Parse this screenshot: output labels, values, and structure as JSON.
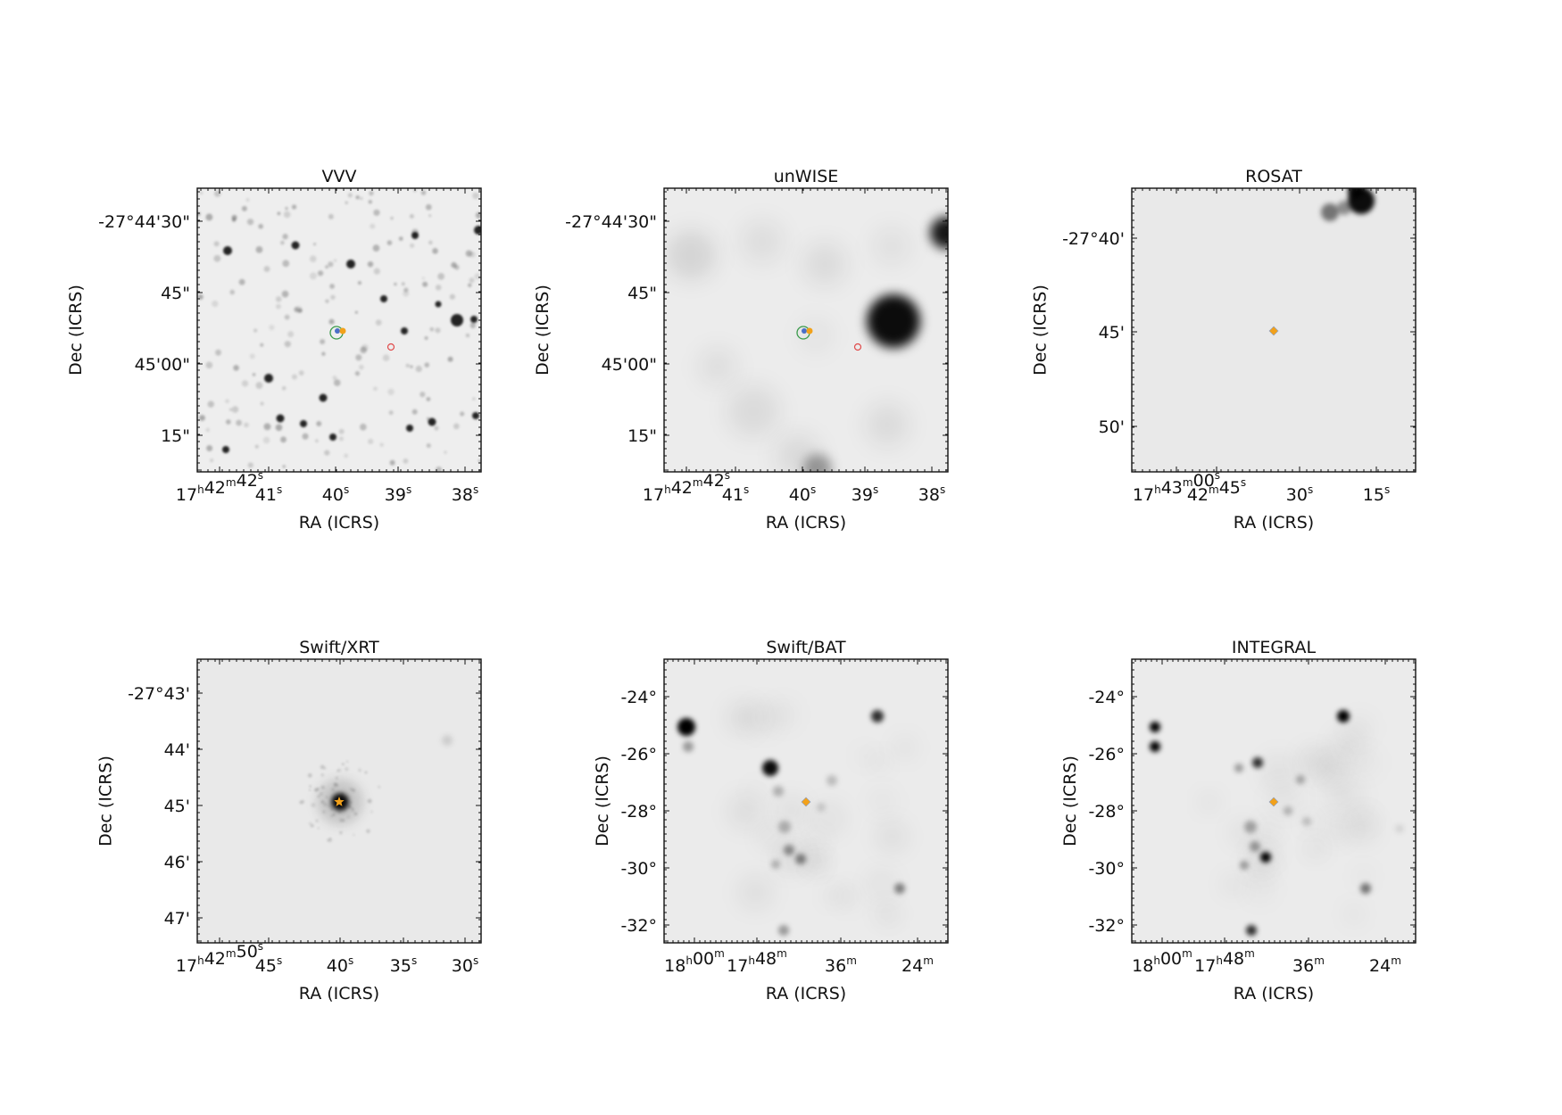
{
  "panels": [
    {
      "id": "vvv",
      "title": "VVV",
      "xlabel": "RA (ICRS)",
      "ylabel": "Dec (ICRS)",
      "image_style": "sharp-starfield",
      "yticks": [
        "-27°44'30\"",
        "45\"",
        "45'00\"",
        "15\""
      ],
      "xticks": [
        {
          "parts": [
            [
              "17",
              "h"
            ],
            [
              "42",
              "m"
            ],
            [
              "42",
              "s"
            ]
          ]
        },
        {
          "parts": [
            [
              "41",
              "s"
            ]
          ]
        },
        {
          "parts": [
            [
              "40",
              "s"
            ]
          ]
        },
        {
          "parts": [
            [
              "39",
              "s"
            ]
          ]
        },
        {
          "parts": [
            [
              "38",
              "s"
            ]
          ]
        }
      ],
      "markers": [
        "green-circle",
        "blue-dot",
        "orange-dot",
        "red-circle"
      ]
    },
    {
      "id": "unwise",
      "title": "unWISE",
      "xlabel": "RA (ICRS)",
      "ylabel": "Dec (ICRS)",
      "image_style": "blurred-infrared",
      "yticks": [
        "-27°44'30\"",
        "45\"",
        "45'00\"",
        "15\""
      ],
      "xticks": [
        {
          "parts": [
            [
              "17",
              "h"
            ],
            [
              "42",
              "m"
            ],
            [
              "42",
              "s"
            ]
          ]
        },
        {
          "parts": [
            [
              "41",
              "s"
            ]
          ]
        },
        {
          "parts": [
            [
              "40",
              "s"
            ]
          ]
        },
        {
          "parts": [
            [
              "39",
              "s"
            ]
          ]
        },
        {
          "parts": [
            [
              "38",
              "s"
            ]
          ]
        }
      ],
      "markers": [
        "green-circle",
        "blue-dot",
        "orange-dot",
        "red-circle"
      ]
    },
    {
      "id": "rosat",
      "title": "ROSAT",
      "xlabel": "RA (ICRS)",
      "ylabel": "Dec (ICRS)",
      "image_style": "flat-xray",
      "yticks": [
        "-27°40'",
        "45'",
        "50'"
      ],
      "xticks": [
        {
          "parts": [
            [
              "17",
              "h"
            ],
            [
              "43",
              "m"
            ],
            [
              "00",
              "s"
            ]
          ]
        },
        {
          "parts": [
            [
              "42",
              "m"
            ],
            [
              "45",
              "s"
            ]
          ]
        },
        {
          "parts": [
            [
              "30",
              "s"
            ]
          ]
        },
        {
          "parts": [
            [
              "15",
              "s"
            ]
          ]
        }
      ],
      "markers": [
        "orange-diamond"
      ]
    },
    {
      "id": "swift-xrt",
      "title": "Swift/XRT",
      "xlabel": "RA (ICRS)",
      "ylabel": "Dec (ICRS)",
      "image_style": "central-point-source",
      "yticks": [
        "-27°43'",
        "44'",
        "45'",
        "46'",
        "47'"
      ],
      "xticks": [
        {
          "parts": [
            [
              "17",
              "h"
            ],
            [
              "42",
              "m"
            ],
            [
              "50",
              "s"
            ]
          ]
        },
        {
          "parts": [
            [
              "45",
              "s"
            ]
          ]
        },
        {
          "parts": [
            [
              "40",
              "s"
            ]
          ]
        },
        {
          "parts": [
            [
              "35",
              "s"
            ]
          ]
        },
        {
          "parts": [
            [
              "30",
              "s"
            ]
          ]
        }
      ],
      "markers": [
        "orange-star"
      ]
    },
    {
      "id": "swift-bat",
      "title": "Swift/BAT",
      "xlabel": "RA (ICRS)",
      "ylabel": "Dec (ICRS)",
      "image_style": "hard-xray-wide",
      "yticks": [
        "-24°",
        "-26°",
        "-28°",
        "-30°",
        "-32°"
      ],
      "xticks": [
        {
          "parts": [
            [
              "18",
              "h"
            ],
            [
              "00",
              "m"
            ]
          ]
        },
        {
          "parts": [
            [
              "17",
              "h"
            ],
            [
              "48",
              "m"
            ]
          ]
        },
        {
          "parts": [
            [
              "36",
              "m"
            ]
          ]
        },
        {
          "parts": [
            [
              "24",
              "m"
            ]
          ]
        }
      ],
      "markers": [
        "orange-diamond"
      ]
    },
    {
      "id": "integral",
      "title": "INTEGRAL",
      "xlabel": "RA (ICRS)",
      "ylabel": "Dec (ICRS)",
      "image_style": "hard-xray-wide",
      "yticks": [
        "-24°",
        "-26°",
        "-28°",
        "-30°",
        "-32°"
      ],
      "xticks": [
        {
          "parts": [
            [
              "18",
              "h"
            ],
            [
              "00",
              "m"
            ]
          ]
        },
        {
          "parts": [
            [
              "17",
              "h"
            ],
            [
              "48",
              "m"
            ]
          ]
        },
        {
          "parts": [
            [
              "36",
              "m"
            ]
          ]
        },
        {
          "parts": [
            [
              "24",
              "m"
            ]
          ]
        }
      ],
      "markers": [
        "orange-diamond"
      ]
    }
  ],
  "colors": {
    "frame": "#111111",
    "background_field": "#e9e9e9",
    "source_dark": "#000000",
    "marker_orange": "#f2a11a",
    "marker_blue": "#4a6fc8",
    "marker_green": "#3a9a4a",
    "marker_red": "#e04a4a"
  }
}
